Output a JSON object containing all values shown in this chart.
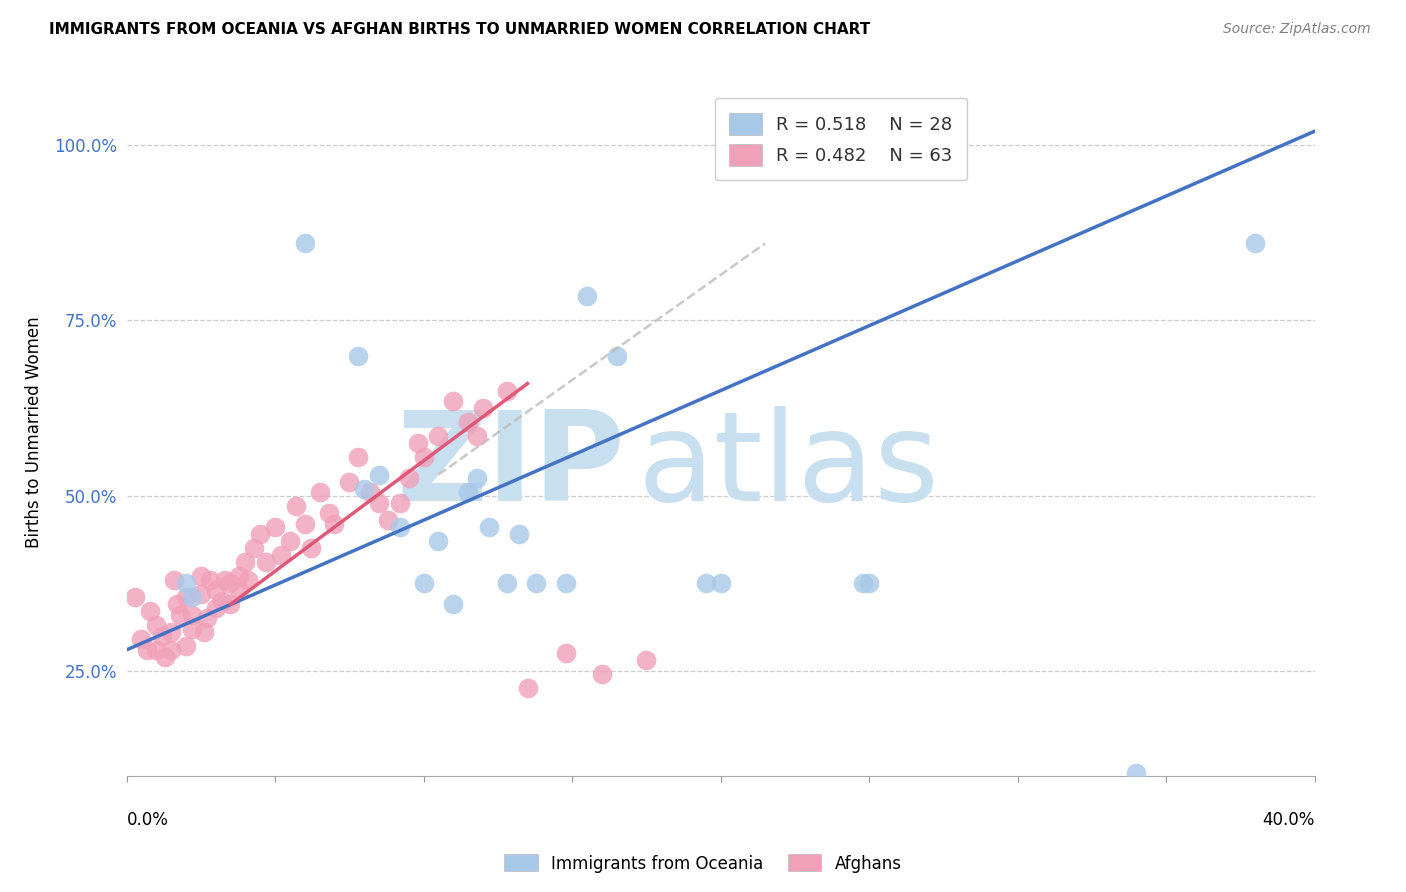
{
  "title": "IMMIGRANTS FROM OCEANIA VS AFGHAN BIRTHS TO UNMARRIED WOMEN CORRELATION CHART",
  "source": "Source: ZipAtlas.com",
  "ylabel": "Births to Unmarried Women",
  "xlim": [
    0.0,
    0.4
  ],
  "ylim": [
    0.1,
    1.08
  ],
  "xticks": [
    0.0,
    0.05,
    0.1,
    0.15,
    0.2,
    0.25,
    0.3,
    0.35,
    0.4
  ],
  "yticks": [
    0.25,
    0.5,
    0.75,
    1.0
  ],
  "ytick_labels": [
    "25.0%",
    "50.0%",
    "75.0%",
    "100.0%"
  ],
  "color_blue_scatter": "#a8c8e8",
  "color_pink_scatter": "#f0a0b8",
  "color_blue_line": "#4472c4",
  "color_pink_line": "#e05878",
  "color_grey_dashed": "#bbbbbb",
  "watermark_zip": "ZIP",
  "watermark_atlas": "atlas",
  "watermark_color_zip": "#c8dff0",
  "watermark_color_atlas": "#c8dff0",
  "blue_x": [
    0.02,
    0.022,
    0.06,
    0.078,
    0.08,
    0.085,
    0.092,
    0.1,
    0.105,
    0.11,
    0.115,
    0.118,
    0.122,
    0.128,
    0.132,
    0.138,
    0.148,
    0.155,
    0.165,
    0.195,
    0.2,
    0.248,
    0.25,
    0.34,
    0.38
  ],
  "blue_y": [
    0.375,
    0.355,
    0.86,
    0.7,
    0.51,
    0.53,
    0.455,
    0.375,
    0.435,
    0.345,
    0.505,
    0.525,
    0.455,
    0.375,
    0.445,
    0.375,
    0.375,
    0.785,
    0.7,
    0.375,
    0.375,
    0.375,
    0.375,
    0.105,
    0.86
  ],
  "pink_x": [
    0.003,
    0.005,
    0.007,
    0.008,
    0.01,
    0.01,
    0.012,
    0.013,
    0.015,
    0.015,
    0.016,
    0.017,
    0.018,
    0.02,
    0.02,
    0.022,
    0.022,
    0.025,
    0.025,
    0.026,
    0.027,
    0.028,
    0.03,
    0.03,
    0.032,
    0.033,
    0.035,
    0.035,
    0.038,
    0.038,
    0.04,
    0.041,
    0.043,
    0.045,
    0.047,
    0.05,
    0.052,
    0.055,
    0.057,
    0.06,
    0.062,
    0.065,
    0.068,
    0.07,
    0.075,
    0.078,
    0.082,
    0.085,
    0.088,
    0.092,
    0.095,
    0.098,
    0.1,
    0.105,
    0.11,
    0.115,
    0.118,
    0.12,
    0.128,
    0.135,
    0.148,
    0.16,
    0.175
  ],
  "pink_y": [
    0.355,
    0.295,
    0.28,
    0.335,
    0.315,
    0.28,
    0.3,
    0.27,
    0.305,
    0.28,
    0.38,
    0.345,
    0.33,
    0.355,
    0.285,
    0.33,
    0.31,
    0.385,
    0.36,
    0.305,
    0.325,
    0.38,
    0.34,
    0.365,
    0.35,
    0.38,
    0.375,
    0.345,
    0.385,
    0.365,
    0.405,
    0.38,
    0.425,
    0.445,
    0.405,
    0.455,
    0.415,
    0.435,
    0.485,
    0.46,
    0.425,
    0.505,
    0.475,
    0.46,
    0.52,
    0.555,
    0.505,
    0.49,
    0.465,
    0.49,
    0.525,
    0.575,
    0.555,
    0.585,
    0.635,
    0.605,
    0.585,
    0.625,
    0.65,
    0.225,
    0.275,
    0.245,
    0.265
  ],
  "blue_line_x0": 0.0,
  "blue_line_x1": 0.4,
  "blue_line_y0": 0.28,
  "blue_line_y1": 1.02,
  "pink_line_x0": 0.035,
  "pink_line_x1": 0.135,
  "pink_line_y0": 0.345,
  "pink_line_y1": 0.66,
  "grey_line_x0": 0.105,
  "grey_line_x1": 0.215,
  "grey_line_y0": 0.53,
  "grey_line_y1": 0.86
}
